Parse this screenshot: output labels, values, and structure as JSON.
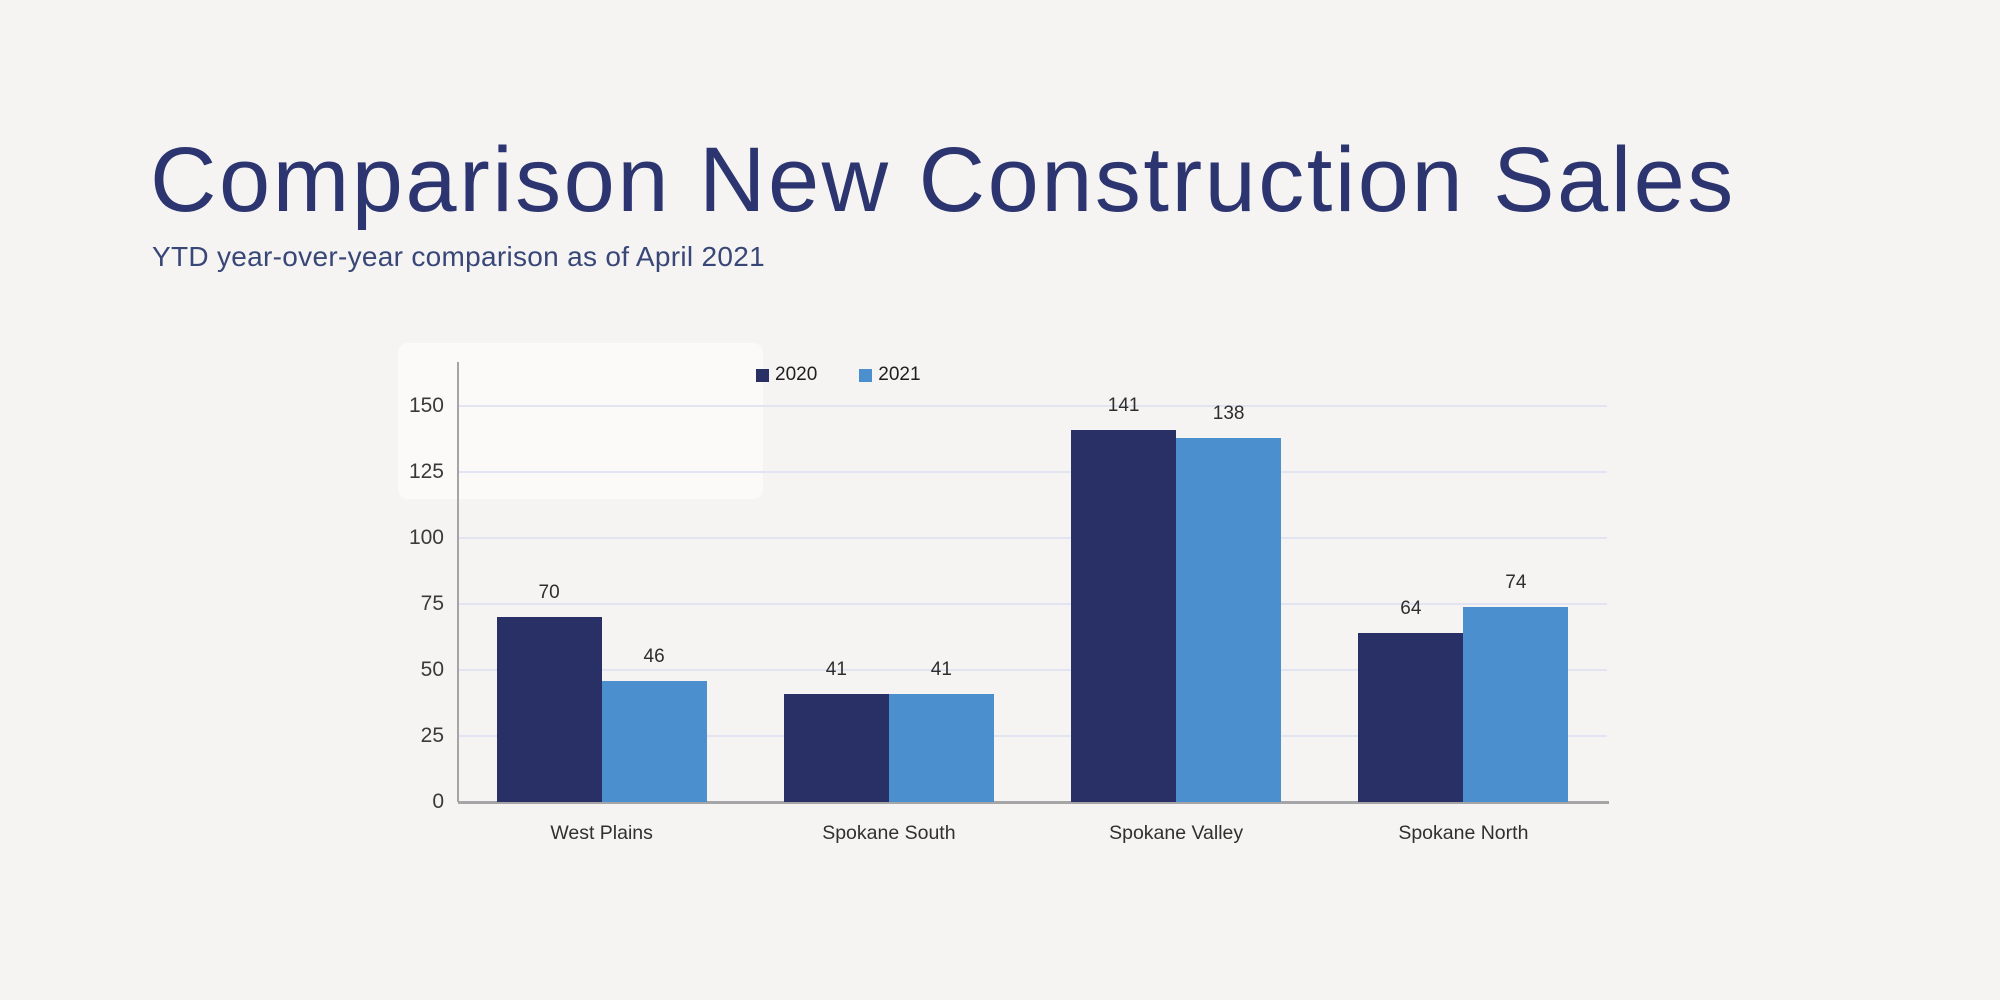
{
  "header": {
    "title": "Comparison New Construction Sales",
    "subtitle": "YTD year-over-year comparison as of April 2021"
  },
  "colors": {
    "background": "#f5f4f2",
    "title_text": "#2c356f",
    "subtitle_text": "#384678",
    "series_2020": "#283066",
    "series_2021": "#4c8fcf",
    "gridline": "#e2e5f1",
    "axis_line": "#a5a5a8",
    "tick_label_text": "#3a3a3a",
    "value_label_text": "#2e2e2e",
    "category_label_text": "#303030",
    "legend_text": "#1e1e1e"
  },
  "chart_data": {
    "type": "bar",
    "title": "Comparison New Construction Sales",
    "subtitle": "YTD year-over-year comparison as of April 2021",
    "categories": [
      "West Plains",
      "Spokane South",
      "Spokane Valley",
      "Spokane North"
    ],
    "series": [
      {
        "name": "2020",
        "color": "#283066",
        "values": [
          70,
          41,
          141,
          64
        ]
      },
      {
        "name": "2021",
        "color": "#4c8fcf",
        "values": [
          46,
          41,
          138,
          74
        ]
      }
    ],
    "xlabel": "",
    "ylabel": "",
    "ylim": [
      0,
      150
    ],
    "yticks": [
      0,
      25,
      50,
      75,
      100,
      125,
      150
    ],
    "grid": true,
    "grid_axis": "y",
    "legend_position": "top",
    "value_labels": true
  }
}
